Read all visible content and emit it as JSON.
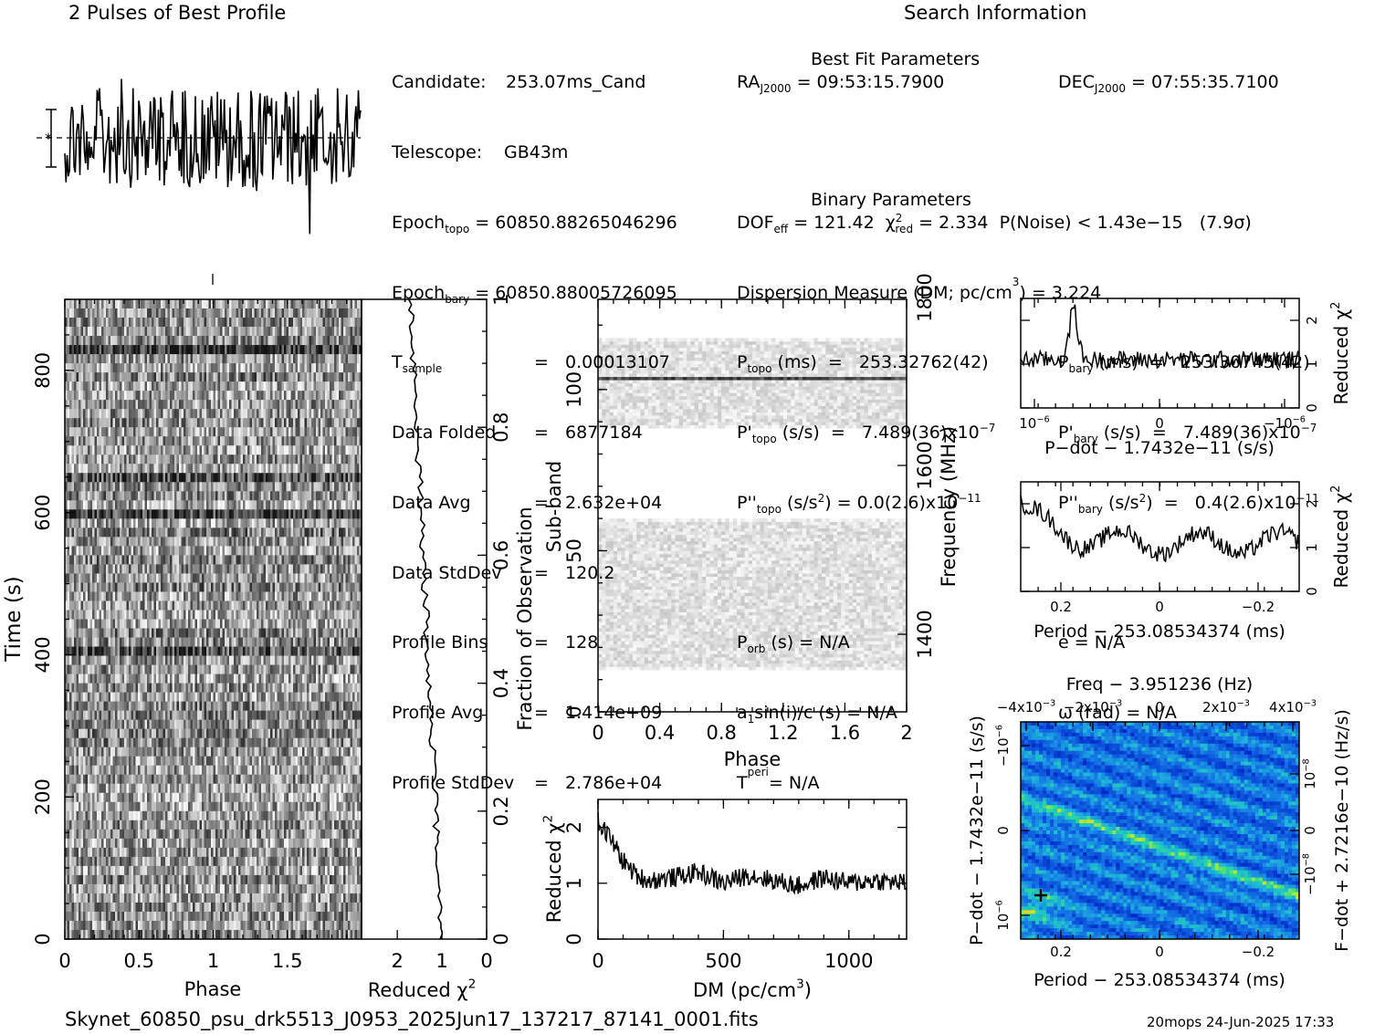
{
  "header": {
    "profile_title": "2 Pulses of Best Profile",
    "search_title": "Search Information",
    "best_fit_title": "Best Fit Parameters",
    "binary_title": "Binary Parameters"
  },
  "candidate_info": [
    {
      "label": "Candidate:",
      "sub": "",
      "value": "253.07ms_Cand"
    },
    {
      "label": "Telescope:",
      "sub": "",
      "value": "GB43m"
    },
    {
      "label": "Epoch",
      "sub": "topo",
      "value": "= 60850.88265046296"
    },
    {
      "label": "Epoch",
      "sub": "bary",
      "value": "= 60850.88005726095"
    },
    {
      "label": "T",
      "sub": "sample",
      "value": "=   0.00013107"
    },
    {
      "label": "Data Folded",
      "sub": "",
      "value": "=   6877184"
    },
    {
      "label": "Data Avg",
      "sub": "",
      "value": "=   2.632e+04"
    },
    {
      "label": "Data StdDev",
      "sub": "",
      "value": "=   120.2"
    },
    {
      "label": "Profile Bins",
      "sub": "",
      "value": "=   128"
    },
    {
      "label": "Profile Avg",
      "sub": "",
      "value": "=   1.414e+09"
    },
    {
      "label": "Profile StdDev",
      "sub": "",
      "value": "=   2.786e+04"
    }
  ],
  "search_info": {
    "ra_label": "RA",
    "ra_sub": "J2000",
    "ra_value": "= 09:53:15.7900",
    "dec_label": "DEC",
    "dec_sub": "J2000",
    "dec_value": "= 07:55:35.7100",
    "dof_label": "DOF",
    "dof_sub": "eff",
    "dof_value": "= 121.42",
    "chi_label": "χ",
    "chi_sup": "2",
    "chi_sub": "red",
    "chi_value": "= 2.334",
    "pnoise": "P(Noise) < 1.43e−15   (7.9σ)",
    "dm": "Dispersion Measure (DM; pc/cm",
    "dm_sup": "3",
    "dm_value": ") = 3.224",
    "ptopo_label": "P",
    "ptopo_sub": "topo",
    "ptopo_value": "(ms)  =   253.32762(42)",
    "pbary_label": "P",
    "pbary_sub": "bary",
    "pbary_value": "(ms)  =   253.30745(42)",
    "pdtopo_label": "P'",
    "pdtopo_sub": "topo",
    "pdtopo_value": "(s/s)  =   7.489(36)x10",
    "pdtopo_exp": "−7",
    "pdbary_label": "P'",
    "pdbary_sub": "bary",
    "pdbary_value": "(s/s)  =   7.489(36)x10",
    "pdbary_exp": "−7",
    "pddtopo_label": "P''",
    "pddtopo_sub": "topo",
    "pddtopo_value": "(s/s",
    "pddtopo_mid": "2",
    "pddtopo_value2": ") = 0.0(2.6)x10",
    "pddtopo_exp": "−11",
    "pddbary_label": "P''",
    "pddbary_sub": "bary",
    "pddbary_value": "(s/s",
    "pddbary_mid": "2",
    "pddbary_value2": ")  =   0.4(2.6)x10",
    "pddbary_exp": "−11",
    "porb_label": "P",
    "porb_sub": "orb",
    "porb_value": "(s) = N/A",
    "ecc": "e = N/A",
    "asini_label": "a",
    "asini_sub": "1",
    "asini_value": "sin(i)/c (s) = N/A",
    "omega": "ω (rad) = N/A",
    "tperi_label": "T",
    "tperi_sub": "peri",
    "tperi_value": "= N/A"
  },
  "footer": {
    "filename": "Skynet_60850_psu_drk5513_J0953_2025Jun17_137217_87141_0001.fits",
    "stamp": "20mops 24-Jun-2025 17:33"
  },
  "chart_data": [
    {
      "id": "profile",
      "type": "line",
      "title": "2 Pulses of Best Profile",
      "x_range": [
        0,
        2
      ],
      "note": "2 pulses, 128 bins each, noise-like"
    },
    {
      "id": "time_phase",
      "type": "heatmap",
      "xlabel": "Phase",
      "ylabel": "Time (s)",
      "x_ticks": [
        "0",
        "0.5",
        "1",
        "1.5"
      ],
      "xlim": [
        0,
        2
      ],
      "y_ticks": [
        "0",
        "200",
        "400",
        "600",
        "800"
      ],
      "ylim": [
        0,
        900
      ],
      "dark_rows_s": [
        823,
        655,
        410,
        595
      ]
    },
    {
      "id": "time_chi",
      "type": "line",
      "xlabel": "Reduced χ",
      "xlabel_sup": "2",
      "x_ticks": [
        "2",
        "1",
        "0"
      ],
      "xlim": [
        2.8,
        0
      ],
      "y2label": "Fraction of Observation",
      "y2_ticks": [
        "0",
        "0.2",
        "0.4",
        "0.6",
        "0.8",
        "1"
      ],
      "x": [
        1.0,
        0.95,
        1.05,
        1.1,
        0.98,
        1.05,
        1.2,
        1.25,
        1.3,
        1.35,
        1.4,
        1.45,
        1.5,
        1.55,
        1.6,
        1.65,
        1.7
      ],
      "y": [
        0.02,
        0.05,
        0.12,
        0.17,
        0.2,
        0.28,
        0.36,
        0.45,
        0.52,
        0.6,
        0.68,
        0.75,
        0.82,
        0.88,
        0.93,
        0.97,
        1.0
      ]
    },
    {
      "id": "subband_phase",
      "type": "heatmap",
      "xlabel": "Phase",
      "ylabel": "Sub-band",
      "x_ticks": [
        "0",
        "0.4",
        "0.8",
        "1.2",
        "1.6",
        "2"
      ],
      "xlim": [
        0,
        2
      ],
      "y_ticks": [
        "0",
        "50",
        "100"
      ],
      "ylim": [
        0,
        128
      ],
      "y2label": "Frequency (MHz)",
      "y2_ticks": [
        "1400",
        "1600",
        "1800"
      ],
      "active_bands": [
        [
          13,
          60
        ],
        [
          88,
          116
        ]
      ],
      "dark_band": 103
    },
    {
      "id": "dm_chi",
      "type": "line",
      "xlabel": "DM (pc/cm",
      "xlabel_sup": "3",
      "xlabel_end": ")",
      "ylabel": "Reduced χ",
      "ylabel_sup": "2",
      "x_ticks": [
        "0",
        "500",
        "1000"
      ],
      "xlim": [
        0,
        1230
      ],
      "y_ticks": [
        "0",
        "1",
        "2"
      ],
      "ylim": [
        0,
        2.5
      ],
      "x": [
        0,
        50,
        100,
        150,
        200,
        300,
        400,
        500,
        600,
        700,
        800,
        900,
        1000,
        1100,
        1230
      ],
      "y": [
        2.1,
        1.8,
        1.4,
        1.15,
        1.05,
        1.1,
        1.2,
        1.0,
        1.15,
        1.05,
        0.95,
        1.1,
        1.0,
        1.05,
        1.0
      ]
    },
    {
      "id": "pdot_chi",
      "type": "line",
      "xlabel": "P−dot − 1.7432e−11 (s/s)",
      "ylabel": "Reduced χ",
      "ylabel_sup": "2",
      "x_ticks": [
        "10",
        "0",
        "−10"
      ],
      "x_tick_exp": "−6",
      "y_ticks": [
        "0",
        "1",
        "2"
      ],
      "ylim": [
        0,
        2.5
      ],
      "peak_at_frac": 0.19,
      "peak_value": 2.3
    },
    {
      "id": "period_chi",
      "type": "line",
      "xlabel": "Period − 253.08534374 (ms)",
      "ylabel": "Reduced χ",
      "ylabel_sup": "2",
      "x_ticks": [
        "0.2",
        "0",
        "−0.2"
      ],
      "xlim": [
        0.28,
        -0.28
      ],
      "y_ticks": [
        "0",
        "1",
        "2"
      ],
      "ylim": [
        0,
        2.5
      ]
    },
    {
      "id": "p_pdot",
      "type": "heatmap",
      "title": "Freq − 3.951236 (Hz)",
      "xlabel": "Period − 253.08534374 (ms)",
      "ylabel": "P−dot − 1.7432e−11 (s/s)",
      "y2label": "F−dot + 2.7216e−10 (Hz/s)",
      "x_ticks": [
        "0.2",
        "0",
        "−0.2"
      ],
      "top_ticks": [
        "−4x10",
        "−2x10",
        "0",
        "2x10",
        "4x10"
      ],
      "top_exp": "−3",
      "y_ticks": [
        "10",
        "0",
        "−10"
      ],
      "y_exp": "−6",
      "y2_ticks": [
        "−10",
        "0",
        "10"
      ],
      "y2_exp": "−8",
      "best_marker": [
        0.25,
        5e-06
      ]
    }
  ]
}
